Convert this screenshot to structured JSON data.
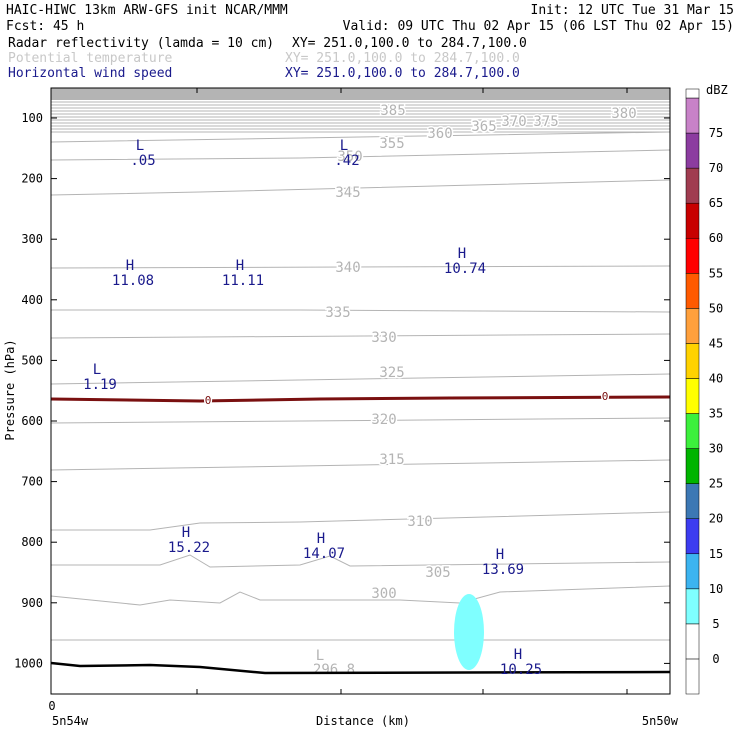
{
  "header": {
    "line1_left": "HAIC-HIWC 13km ARW-GFS init   NCAR/MMM",
    "line1_right": "Init: 12 UTC Tue 31 Mar 15",
    "line2_left": "Fcst:   45 h",
    "line2_right": "Valid: 09 UTC Thu 02 Apr 15 (06 LST Thu 02 Apr 15)",
    "fields": [
      {
        "name": "Radar reflectivity (lamda = 10 cm)",
        "xy": "XY= 251.0,100.0 to 284.7,100.0",
        "color": "#000000"
      },
      {
        "name": "Potential temperature",
        "xy": "XY= 251.0,100.0 to 284.7,100.0",
        "color": "#c8c8c8"
      },
      {
        "name": "Horizontal wind speed",
        "xy": "XY= 251.0,100.0 to 284.7,100.0",
        "color": "#1a1a8c"
      }
    ]
  },
  "chart_data": {
    "type": "cross-section",
    "ylabel": "Pressure (hPa)",
    "xlabel": "Distance (km)",
    "y_ticks": [
      100,
      200,
      300,
      400,
      500,
      600,
      700,
      800,
      900,
      1000
    ],
    "ylim": [
      50,
      1050
    ],
    "x_tick_label": "0",
    "x_left_label": "5n54w",
    "x_right_label": "5n50w",
    "colorbar": {
      "unit": "dBZ",
      "levels": [
        "-5",
        "0",
        "5",
        "10",
        "15",
        "20",
        "25",
        "30",
        "35",
        "40",
        "45",
        "50",
        "55",
        "60",
        "65",
        "70",
        "75"
      ],
      "labels": [
        "0",
        "5",
        "10",
        "15",
        "20",
        "25",
        "30",
        "35",
        "40",
        "45",
        "50",
        "55",
        "60",
        "65",
        "70",
        "75"
      ],
      "colors": [
        "#ffffff",
        "#ffffff",
        "#7fffff",
        "#3cb4f0",
        "#3c3cf0",
        "#3c78b4",
        "#00b400",
        "#3cf03c",
        "#ffff00",
        "#ffd200",
        "#ffa03c",
        "#ff5a00",
        "#ff0000",
        "#c80000",
        "#a03c50",
        "#8c3ca0",
        "#c882c8"
      ]
    },
    "theta_labels": [
      "385",
      "380",
      "375",
      "370",
      "365",
      "360",
      "355",
      "350",
      "345",
      "340",
      "335",
      "330",
      "325",
      "320",
      "315",
      "310",
      "305",
      "300",
      "296.8"
    ],
    "zero_labels": [
      "0",
      "0"
    ],
    "wind_extrema": [
      {
        "type": "L",
        "value": ".05"
      },
      {
        "type": "L",
        "value": ".42"
      },
      {
        "type": "H",
        "value": "11.08"
      },
      {
        "type": "H",
        "value": "11.11"
      },
      {
        "type": "H",
        "value": "10.74"
      },
      {
        "type": "L",
        "value": "1.19"
      },
      {
        "type": "H",
        "value": "15.22"
      },
      {
        "type": "H",
        "value": "14.07"
      },
      {
        "type": "H",
        "value": "13.69"
      },
      {
        "type": "H",
        "value": "10.25"
      },
      {
        "type": "L",
        "value": ""
      }
    ]
  }
}
